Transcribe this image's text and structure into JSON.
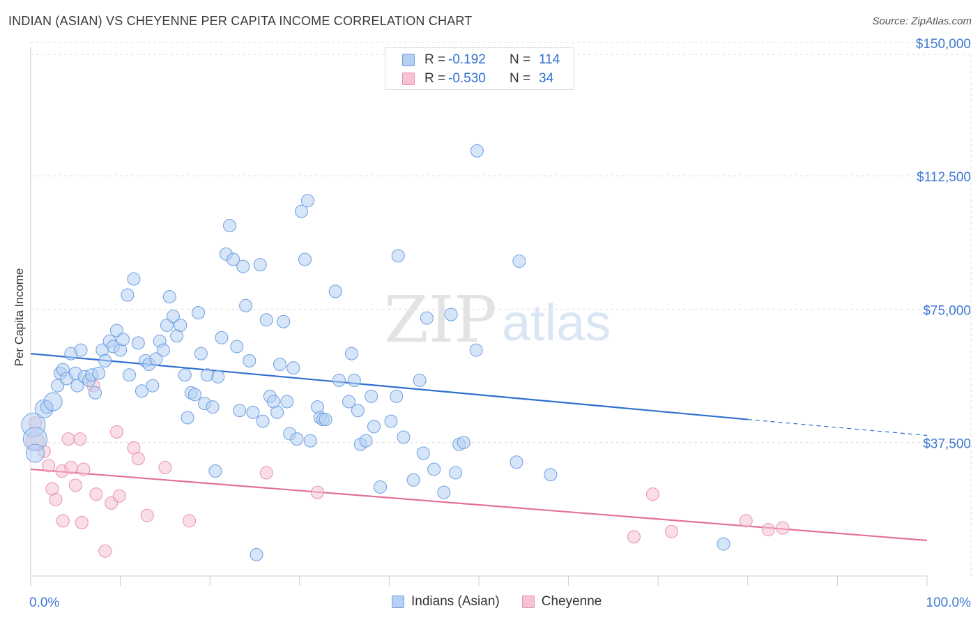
{
  "header": {
    "title": "INDIAN (ASIAN) VS CHEYENNE PER CAPITA INCOME CORRELATION CHART",
    "source": "Source: ZipAtlas.com"
  },
  "watermark": {
    "zip": "ZIP",
    "atlas": "atlas"
  },
  "colors": {
    "blue_fill": "#b5d0f3",
    "blue_stroke": "#6d9ee0",
    "blue_line": "#2f6fd0",
    "pink_fill": "#f6c3d2",
    "pink_stroke": "#ea8fae",
    "pink_line": "#e2709a",
    "axis_text": "#3d78d0",
    "grid": "#dddddd"
  },
  "legend": {
    "rows": [
      {
        "r_label": "R =",
        "r_value": "-0.192",
        "n_label": "N =",
        "n_value": "114"
      },
      {
        "r_label": "R =",
        "r_value": "-0.530",
        "n_label": "N =",
        "n_value": "34"
      }
    ]
  },
  "bottom_legend": {
    "series_1": "Indians (Asian)",
    "series_2": "Cheyenne"
  },
  "chart_data": {
    "type": "scatter",
    "title": "INDIAN (ASIAN) VS CHEYENNE PER CAPITA INCOME CORRELATION CHART",
    "xlabel": "",
    "ylabel": "Per Capita Income",
    "xlim": [
      0,
      100
    ],
    "ylim": [
      0,
      155000
    ],
    "x_tick_labels": [
      "0.0%",
      "100.0%"
    ],
    "y_ticks": [
      37500,
      75000,
      112500,
      150000
    ],
    "y_tick_labels": [
      "$37,500",
      "$75,000",
      "$112,500",
      "$150,000"
    ],
    "grid": true,
    "series": [
      {
        "name": "Indians (Asian)",
        "r": -0.192,
        "n": 114,
        "trend": {
          "x0": 0,
          "y0": 62500,
          "x1": 80,
          "y1": 44000,
          "dashed_to_x": 100,
          "dashed_to_y": 39500
        },
        "points": [
          [
            0.3,
            42500,
            "L"
          ],
          [
            0.5,
            38500,
            "L"
          ],
          [
            0.5,
            34500,
            "M"
          ],
          [
            1.5,
            47000,
            "M"
          ],
          [
            1.8,
            47500,
            "S"
          ],
          [
            2.5,
            49000,
            "M"
          ],
          [
            3,
            53500
          ],
          [
            3.3,
            57000
          ],
          [
            3.6,
            58000
          ],
          [
            4,
            55500
          ],
          [
            4.5,
            62500
          ],
          [
            5,
            57000
          ],
          [
            5.2,
            53500
          ],
          [
            5.6,
            63500
          ],
          [
            6,
            56000
          ],
          [
            6.5,
            55000
          ],
          [
            6.8,
            56500
          ],
          [
            7.2,
            51500
          ],
          [
            7.6,
            57000
          ],
          [
            8,
            63500
          ],
          [
            8.3,
            60500
          ],
          [
            8.8,
            66000
          ],
          [
            9.2,
            64500
          ],
          [
            9.6,
            69000
          ],
          [
            10,
            63500
          ],
          [
            10.3,
            66500
          ],
          [
            10.8,
            79000
          ],
          [
            11,
            56500
          ],
          [
            11.5,
            83500
          ],
          [
            12,
            65500
          ],
          [
            12.4,
            52000
          ],
          [
            12.8,
            60500
          ],
          [
            13.2,
            59500
          ],
          [
            13.6,
            53500
          ],
          [
            14,
            61000
          ],
          [
            14.4,
            66000
          ],
          [
            14.8,
            63500
          ],
          [
            15.2,
            70500
          ],
          [
            15.5,
            78500
          ],
          [
            15.9,
            73000
          ],
          [
            16.3,
            67500
          ],
          [
            16.7,
            70500
          ],
          [
            17.2,
            56500
          ],
          [
            17.5,
            44500
          ],
          [
            17.9,
            51500
          ],
          [
            18.3,
            51000
          ],
          [
            18.7,
            74000
          ],
          [
            19,
            62500
          ],
          [
            19.4,
            48500
          ],
          [
            19.7,
            56500
          ],
          [
            20.3,
            47500
          ],
          [
            20.6,
            29500
          ],
          [
            20.9,
            56000
          ],
          [
            21.3,
            67000
          ],
          [
            21.8,
            90500
          ],
          [
            22.2,
            98500
          ],
          [
            22.6,
            89000
          ],
          [
            23,
            64500
          ],
          [
            23.3,
            46500
          ],
          [
            23.7,
            87000
          ],
          [
            24,
            76000
          ],
          [
            24.4,
            60500
          ],
          [
            24.8,
            46000
          ],
          [
            25.2,
            6000
          ],
          [
            25.6,
            87500
          ],
          [
            25.9,
            43500
          ],
          [
            26.3,
            72000
          ],
          [
            26.7,
            50500
          ],
          [
            27.1,
            49000
          ],
          [
            27.5,
            46000
          ],
          [
            27.8,
            59500
          ],
          [
            28.2,
            71500
          ],
          [
            28.6,
            49000
          ],
          [
            28.9,
            40000
          ],
          [
            29.3,
            58500
          ],
          [
            29.7,
            38500
          ],
          [
            30.2,
            102500
          ],
          [
            30.6,
            89000
          ],
          [
            30.9,
            105500
          ],
          [
            31.2,
            38000
          ],
          [
            32,
            47500
          ],
          [
            32.3,
            44500
          ],
          [
            32.6,
            44000
          ],
          [
            32.9,
            44000
          ],
          [
            34,
            80000
          ],
          [
            34.4,
            55000
          ],
          [
            35.5,
            49000
          ],
          [
            35.8,
            62500
          ],
          [
            36.1,
            55000
          ],
          [
            36.5,
            46500
          ],
          [
            36.8,
            37000
          ],
          [
            37.4,
            38000
          ],
          [
            38,
            50500
          ],
          [
            38.3,
            42000
          ],
          [
            39,
            25000
          ],
          [
            40.2,
            43500
          ],
          [
            40.8,
            50500
          ],
          [
            41,
            90000
          ],
          [
            41.6,
            39000
          ],
          [
            42.7,
            27000
          ],
          [
            43.4,
            55000
          ],
          [
            43.8,
            34500
          ],
          [
            44.2,
            72500
          ],
          [
            45,
            30000
          ],
          [
            46.1,
            23500
          ],
          [
            46.9,
            73500
          ],
          [
            47.4,
            29000
          ],
          [
            47.8,
            37000
          ],
          [
            48.3,
            37500
          ],
          [
            49.7,
            63500
          ],
          [
            49.8,
            119500
          ],
          [
            54.2,
            32000
          ],
          [
            54.5,
            88500
          ],
          [
            58,
            28500
          ],
          [
            77.3,
            9000
          ]
        ]
      },
      {
        "name": "Cheyenne",
        "r": -0.53,
        "n": 34,
        "trend": {
          "x0": 0,
          "y0": 30000,
          "x1": 100,
          "y1": 10000
        },
        "points": [
          [
            0.5,
            38000,
            "M"
          ],
          [
            0.5,
            43000
          ],
          [
            1.5,
            35000
          ],
          [
            2,
            31000
          ],
          [
            2.4,
            24500
          ],
          [
            2.8,
            21500
          ],
          [
            3.5,
            29500
          ],
          [
            3.6,
            15500
          ],
          [
            4.2,
            38500
          ],
          [
            4.5,
            30500
          ],
          [
            5,
            25500
          ],
          [
            5.5,
            38500
          ],
          [
            5.7,
            15000
          ],
          [
            5.9,
            30000
          ],
          [
            7,
            53500
          ],
          [
            7.3,
            23000
          ],
          [
            8.3,
            7000
          ],
          [
            9,
            20500
          ],
          [
            9.6,
            40500
          ],
          [
            9.9,
            22500
          ],
          [
            11.5,
            36000
          ],
          [
            12,
            33000
          ],
          [
            13,
            17000
          ],
          [
            15,
            30500
          ],
          [
            17.7,
            15500
          ],
          [
            26.3,
            29000
          ],
          [
            32,
            23500
          ],
          [
            67.3,
            11000
          ],
          [
            69.4,
            23000
          ],
          [
            71.5,
            12500
          ],
          [
            79.8,
            15500
          ],
          [
            82.3,
            13000
          ],
          [
            83.9,
            13500
          ]
        ]
      }
    ]
  }
}
